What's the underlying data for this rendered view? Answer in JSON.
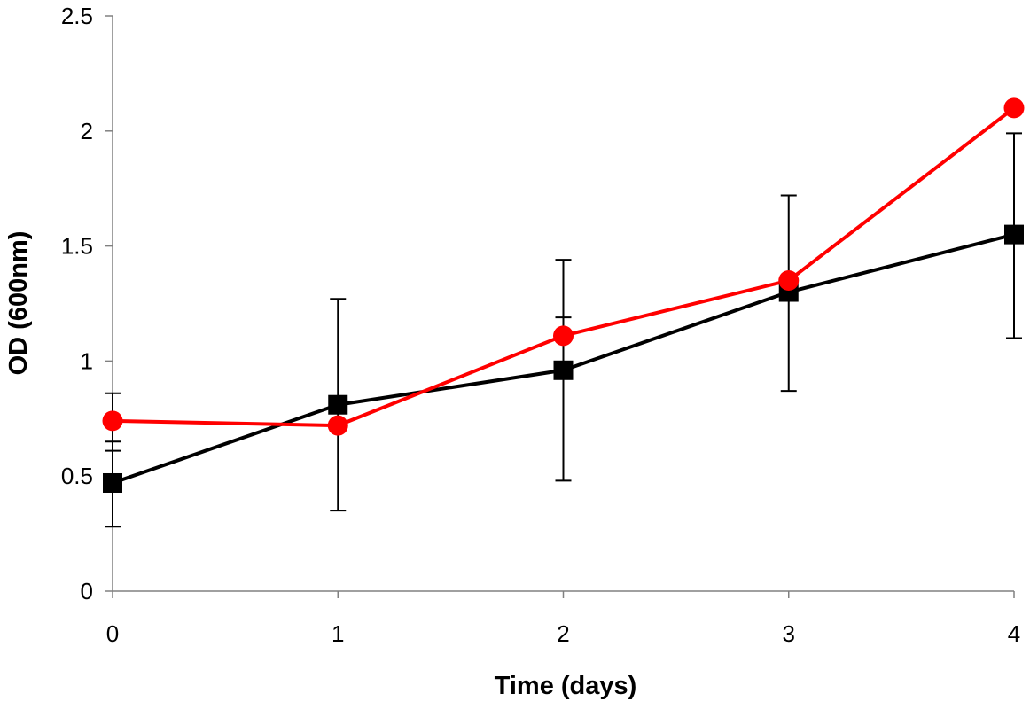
{
  "chart_data": {
    "type": "line",
    "title": "",
    "xlabel": "Time (days)",
    "ylabel": "OD (600nm)",
    "x": [
      0,
      1,
      2,
      3,
      4
    ],
    "x_tick_labels": [
      "0",
      "1",
      "2",
      "3",
      "4"
    ],
    "y_tick_labels": [
      "0",
      "0.5",
      "1",
      "1.5",
      "2",
      "2.5"
    ],
    "y_ticks": [
      0,
      0.5,
      1,
      1.5,
      2,
      2.5
    ],
    "xlim": [
      0,
      4
    ],
    "ylim": [
      0,
      2.5
    ],
    "grid": false,
    "legend": false,
    "series": [
      {
        "marker": "square",
        "color": "#000000",
        "values": [
          0.47,
          0.81,
          0.96,
          1.3,
          1.55
        ],
        "error_bars": {
          "upper": [
            0.65,
            1.27,
            1.44,
            1.72,
            1.99
          ],
          "lower": [
            0.28,
            0.35,
            0.48,
            0.87,
            1.1
          ]
        }
      },
      {
        "marker": "circle",
        "color": "#ff0000",
        "values": [
          0.74,
          0.72,
          1.11,
          1.35,
          2.1
        ],
        "error_bars": {
          "upper": [
            0.86,
            null,
            1.19,
            null,
            null
          ],
          "lower": [
            0.61,
            null,
            null,
            null,
            null
          ]
        }
      }
    ]
  }
}
